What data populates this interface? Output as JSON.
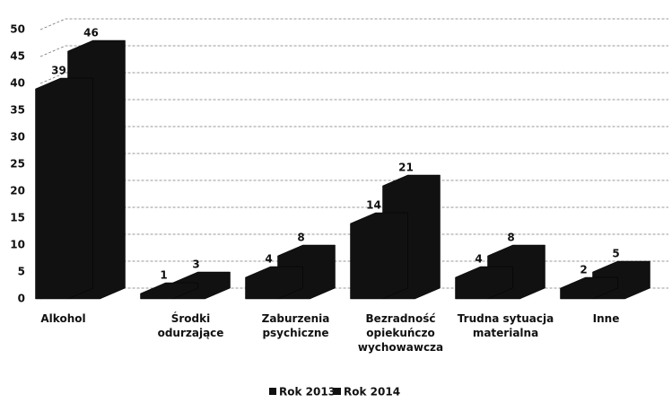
{
  "chart_data": {
    "type": "bar",
    "categories": [
      "Alkohol",
      "Środki odurzające",
      "Zaburzenia psychiczne",
      "Bezradność opiekuńczo wychowawcza",
      "Trudna sytuacja materialna",
      "Inne"
    ],
    "series": [
      {
        "name": "Rok 2013",
        "color": "#111111",
        "values": [
          39,
          1,
          4,
          14,
          4,
          2
        ]
      },
      {
        "name": "Rok 2014",
        "color": "#111111",
        "values": [
          46,
          3,
          8,
          21,
          8,
          5
        ]
      }
    ],
    "ylim": [
      0,
      50
    ],
    "yticks": [
      0,
      5,
      10,
      15,
      20,
      25,
      30,
      35,
      40,
      45,
      50
    ],
    "grid": true,
    "legend": "bottom"
  }
}
